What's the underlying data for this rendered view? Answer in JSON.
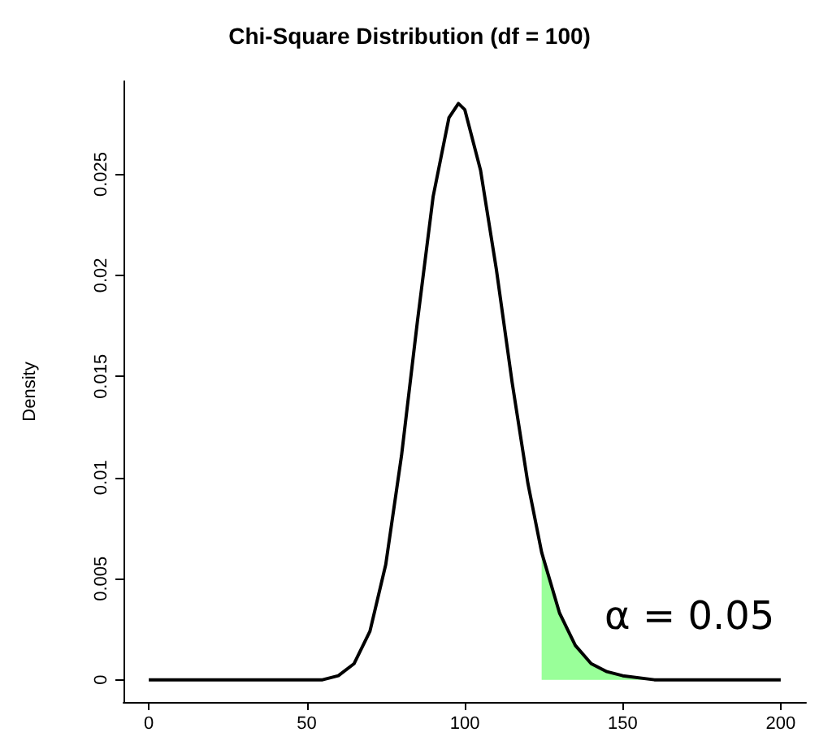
{
  "chart_data": {
    "type": "line",
    "title": "Chi-Square Distribution (df = 100)",
    "ylabel": "Density",
    "xlim": [
      -8,
      208
    ],
    "xticks": [
      0,
      50,
      100,
      150,
      200
    ],
    "ylim": [
      -0.0011,
      0.0296
    ],
    "yticks": [
      0,
      0.005,
      0.01,
      0.015,
      0.02,
      0.025
    ],
    "grid": false,
    "marker": "none",
    "line_style": "solid",
    "series": [
      {
        "type": "area",
        "color": "#99ff99",
        "x": [
          124.34,
          130,
          135,
          140,
          145,
          150,
          160,
          200
        ],
        "values": [
          0.0063,
          0.0033,
          0.0017,
          0.0008,
          0.0004,
          0.0002,
          0,
          0
        ]
      },
      {
        "color": "#000000",
        "x": [
          0,
          50,
          55,
          60,
          65,
          70,
          75,
          80,
          85,
          90,
          95,
          98,
          100,
          105,
          110,
          115,
          120,
          124.34,
          130,
          135,
          140,
          145,
          150,
          160,
          200
        ],
        "values": [
          0,
          0,
          0,
          0.0002,
          0.0008,
          0.0024,
          0.0057,
          0.0111,
          0.0177,
          0.0239,
          0.0278,
          0.0285,
          0.0282,
          0.0252,
          0.0203,
          0.0147,
          0.0097,
          0.0063,
          0.0033,
          0.0017,
          0.0008,
          0.0004,
          0.0002,
          0,
          0
        ]
      }
    ],
    "annotations": [
      "α = 0.05"
    ]
  }
}
